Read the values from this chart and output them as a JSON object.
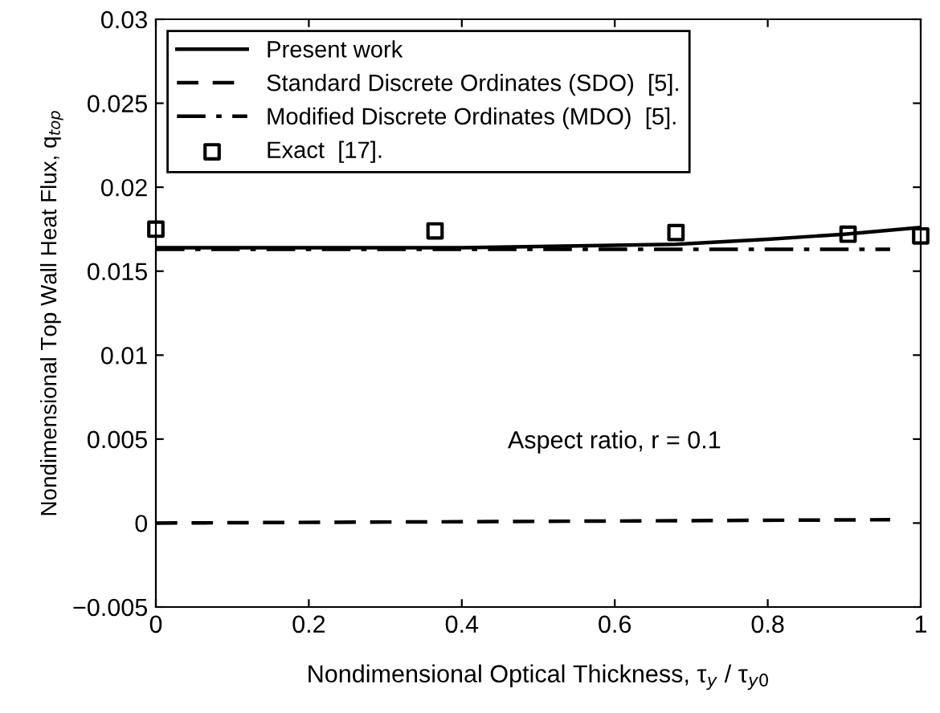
{
  "chart_data": {
    "type": "line",
    "xlabel": "Nondimensional Optical Thickness, τ$_{y}$ / τ$_{y0}$",
    "ylabel": "Nondimensional Top Wall Heat Flux, q$_{top}$",
    "series": [
      {
        "name": "Present work",
        "color": "#000000",
        "line_style": "solid",
        "marker": "none",
        "x": [
          0,
          0.2,
          0.4,
          0.55,
          0.68,
          0.8,
          0.9,
          1.0
        ],
        "values": [
          0.0164,
          0.0164,
          0.0164,
          0.0165,
          0.0166,
          0.0169,
          0.0172,
          0.0176
        ]
      },
      {
        "name": "Standard Discrete Ordinates (SDO)  [5].",
        "color": "#000000",
        "line_style": "dashed",
        "marker": "none",
        "x": [
          0,
          0.5,
          0.96
        ],
        "values": [
          0.0,
          0.0001,
          0.0002
        ]
      },
      {
        "name": "Modified Discrete Ordinates (MDO)  [5].",
        "color": "#000000",
        "line_style": "dashdot",
        "marker": "none",
        "x": [
          0,
          0.5,
          0.96
        ],
        "values": [
          0.0163,
          0.0163,
          0.0163
        ]
      },
      {
        "name": "Exact  [17].",
        "type": "scatter",
        "color": "#000000",
        "marker": "square",
        "x": [
          0,
          0.365,
          0.68,
          0.905,
          1.0
        ],
        "values": [
          0.0175,
          0.0174,
          0.0173,
          0.0172,
          0.0171
        ]
      }
    ],
    "xlim": [
      0,
      1
    ],
    "ylim": [
      -0.005,
      0.03
    ],
    "xticks": [
      0,
      0.2,
      0.4,
      0.6,
      0.8,
      1
    ],
    "yticks": [
      {
        "value": -0.005,
        "label": "−0.005"
      },
      0,
      0.005,
      0.01,
      0.015,
      0.02,
      0.025,
      0.03
    ],
    "annotations": [
      "Aspect ratio, r = 0.1"
    ],
    "legend": "top left",
    "grid": false
  }
}
